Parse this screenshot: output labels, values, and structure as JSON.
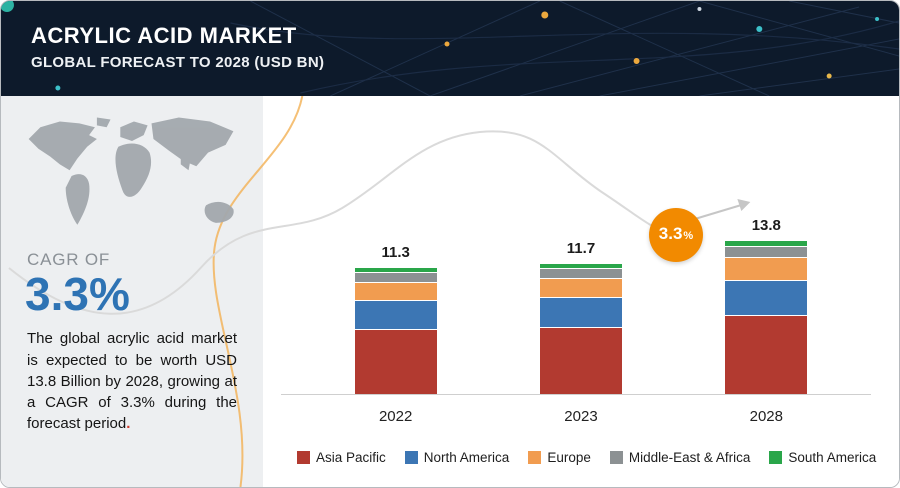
{
  "header": {
    "title": "ACRYLIC ACID MARKET",
    "subtitle": "GLOBAL FORECAST TO 2028 (USD BN)"
  },
  "sidebar": {
    "cagr_label": "CAGR OF",
    "cagr_value": "3.3%",
    "description": "The global acrylic acid market is expected to be worth USD 13.8 Billion by 2028, growing at a CAGR of 3.3% during the forecast period",
    "description_period": "."
  },
  "chart_data": {
    "type": "bar",
    "stacked": true,
    "title": "Acrylic Acid Market, Global Forecast to 2028 (USD BN)",
    "categories": [
      "2022",
      "2023",
      "2028"
    ],
    "totals": [
      11.3,
      11.7,
      13.8
    ],
    "series": [
      {
        "name": "Asia Pacific",
        "color": "#b23a30",
        "values": [
          5.9,
          6.1,
          7.2
        ]
      },
      {
        "name": "North America",
        "color": "#3c76b4",
        "values": [
          2.6,
          2.7,
          3.2
        ]
      },
      {
        "name": "Europe",
        "color": "#f19c50",
        "values": [
          1.6,
          1.7,
          2.0
        ]
      },
      {
        "name": "Middle-East & Africa",
        "color": "#8c9193",
        "values": [
          0.8,
          0.8,
          0.9
        ]
      },
      {
        "name": "South America",
        "color": "#2aa64a",
        "values": [
          0.4,
          0.4,
          0.5
        ]
      }
    ],
    "ylim": [
      0,
      15
    ],
    "grid": false,
    "legend_position": "bottom",
    "annotation": {
      "value": "3.3",
      "unit": "%",
      "type": "cagr-badge"
    }
  }
}
